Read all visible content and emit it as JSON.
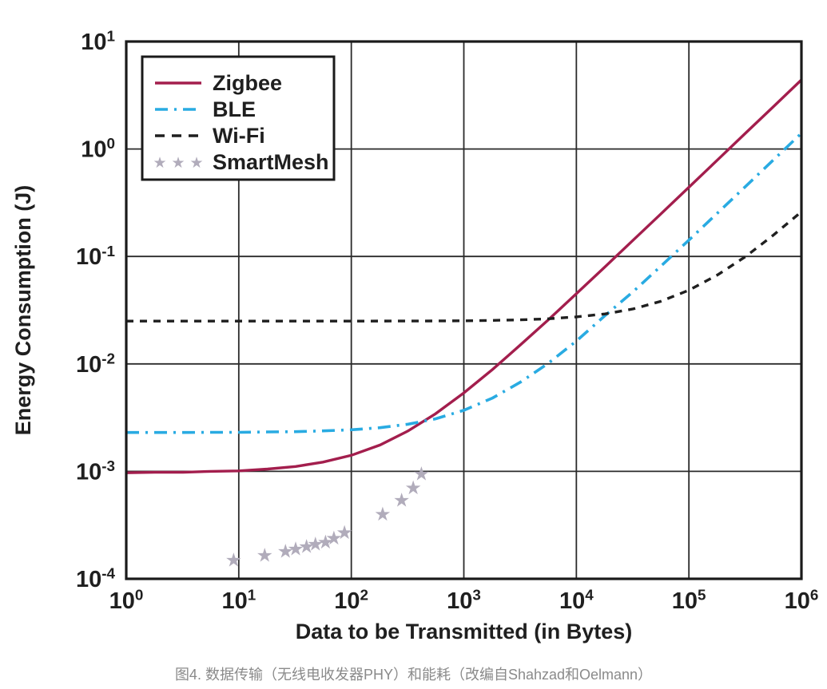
{
  "figure": {
    "caption": "图4. 数据传输（无线电收发器PHY）和能耗（改编自Shahzad和Oelmann）"
  },
  "chart_data": {
    "type": "line",
    "title": "",
    "xlabel": "Data to be Transmitted (in Bytes)",
    "ylabel": "Energy Consumption (J)",
    "x_scale": "log",
    "y_scale": "log",
    "xlim": [
      1,
      1000000
    ],
    "ylim": [
      0.0001,
      10
    ],
    "x_tick_exponents": [
      0,
      1,
      2,
      3,
      4,
      5,
      6
    ],
    "y_tick_exponents": [
      1,
      0,
      -1,
      -2,
      -3,
      -4
    ],
    "grid": true,
    "legend_position": "top-left",
    "colors": {
      "zigbee": "#A31E4D",
      "ble": "#29ABE2",
      "wifi": "#1F1F1F",
      "smartmesh": "#B1ACBB",
      "grid": "#2B2B2B",
      "axis": "#1A1A1A",
      "caption": "#8A8A8A"
    },
    "series": [
      {
        "name": "Zigbee",
        "style": "solid",
        "color": "#A31E4D",
        "x": [
          1,
          1.8,
          3.2,
          5.6,
          10,
          18,
          32,
          56,
          100,
          180,
          320,
          560,
          1000,
          1800,
          3200,
          5600,
          10000,
          18000,
          32000,
          56000,
          100000,
          180000,
          320000,
          560000,
          1000000
        ],
        "y": [
          0.00097,
          0.00098,
          0.00098,
          0.001,
          0.00101,
          0.00105,
          0.00111,
          0.00122,
          0.00141,
          0.00176,
          0.00238,
          0.00343,
          0.00537,
          0.00889,
          0.0151,
          0.0256,
          0.045,
          0.0802,
          0.142,
          0.247,
          0.441,
          0.793,
          1.41,
          2.46,
          4.4
        ]
      },
      {
        "name": "BLE",
        "style": "dash-dot",
        "color": "#29ABE2",
        "x": [
          1,
          1.8,
          3.2,
          5.6,
          10,
          18,
          32,
          56,
          100,
          180,
          320,
          560,
          1000,
          1800,
          3200,
          5600,
          10000,
          18000,
          32000,
          56000,
          100000,
          180000,
          320000,
          560000,
          1000000
        ],
        "y": [
          0.0023,
          0.0023,
          0.0023,
          0.00231,
          0.00231,
          0.00233,
          0.00234,
          0.00238,
          0.00244,
          0.00255,
          0.00275,
          0.00308,
          0.0037,
          0.00482,
          0.00678,
          0.0101,
          0.0163,
          0.0282,
          0.0471,
          0.0807,
          0.142,
          0.254,
          0.45,
          0.786,
          1.4
        ]
      },
      {
        "name": "Wi-Fi",
        "style": "dashed",
        "color": "#1F1F1F",
        "x": [
          1,
          10,
          100,
          560,
          1000,
          1800,
          3200,
          5600,
          10000,
          18000,
          32000,
          56000,
          100000,
          180000,
          320000,
          560000,
          1000000
        ],
        "y": [
          0.025,
          0.025,
          0.025,
          0.0251,
          0.0252,
          0.0254,
          0.0257,
          0.0263,
          0.0274,
          0.0292,
          0.0325,
          0.0382,
          0.0485,
          0.0673,
          0.1,
          0.157,
          0.26
        ]
      },
      {
        "name": "SmartMesh",
        "style": "stars",
        "color": "#B1ACBB",
        "x": [
          9,
          17,
          26,
          32,
          40,
          48,
          59,
          70,
          87,
          190,
          280,
          355,
          420
        ],
        "y": [
          0.00015,
          0.000165,
          0.00018,
          0.00019,
          0.0002,
          0.00021,
          0.00022,
          0.00024,
          0.00027,
          0.0004,
          0.00054,
          0.0007,
          0.00095
        ]
      }
    ]
  }
}
